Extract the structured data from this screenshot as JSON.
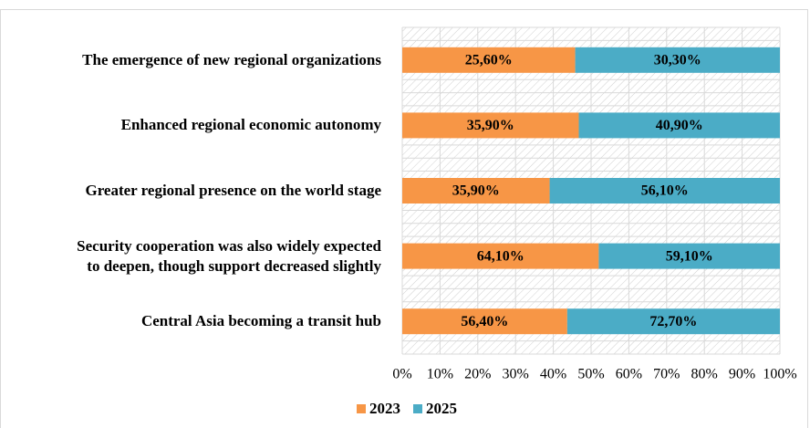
{
  "chart_data": {
    "type": "bar",
    "orientation": "horizontal",
    "stacking": "percent",
    "categories": [
      "The emergence of new regional organizations",
      "Enhanced regional economic autonomy",
      "Greater regional presence on the world stage",
      "Security cooperation was also widely expected\nto deepen, though support decreased slightly",
      "Central Asia becoming a transit hub"
    ],
    "series": [
      {
        "name": "2023",
        "color": "#f79646",
        "values": [
          25.6,
          35.9,
          35.9,
          64.1,
          56.4
        ],
        "value_labels": [
          "25,60%",
          "35,90%",
          "35,90%",
          "64,10%",
          "56,40%"
        ]
      },
      {
        "name": "2025",
        "color": "#4bacc6",
        "values": [
          30.3,
          40.9,
          56.1,
          59.1,
          72.7
        ],
        "value_labels": [
          "30,30%",
          "40,90%",
          "56,10%",
          "59,10%",
          "72,70%"
        ]
      }
    ],
    "xlim": [
      0,
      100
    ],
    "xticks": [
      {
        "value": 0,
        "label": "0%"
      },
      {
        "value": 10,
        "label": "10%"
      },
      {
        "value": 20,
        "label": "20%"
      },
      {
        "value": 30,
        "label": "30%"
      },
      {
        "value": 40,
        "label": "40%"
      },
      {
        "value": 50,
        "label": "50%"
      },
      {
        "value": 60,
        "label": "60%"
      },
      {
        "value": 70,
        "label": "70%"
      },
      {
        "value": 80,
        "label": "80%"
      },
      {
        "value": 90,
        "label": "90%"
      },
      {
        "value": 100,
        "label": "100%"
      }
    ],
    "grid": true,
    "legend": "bottom"
  }
}
